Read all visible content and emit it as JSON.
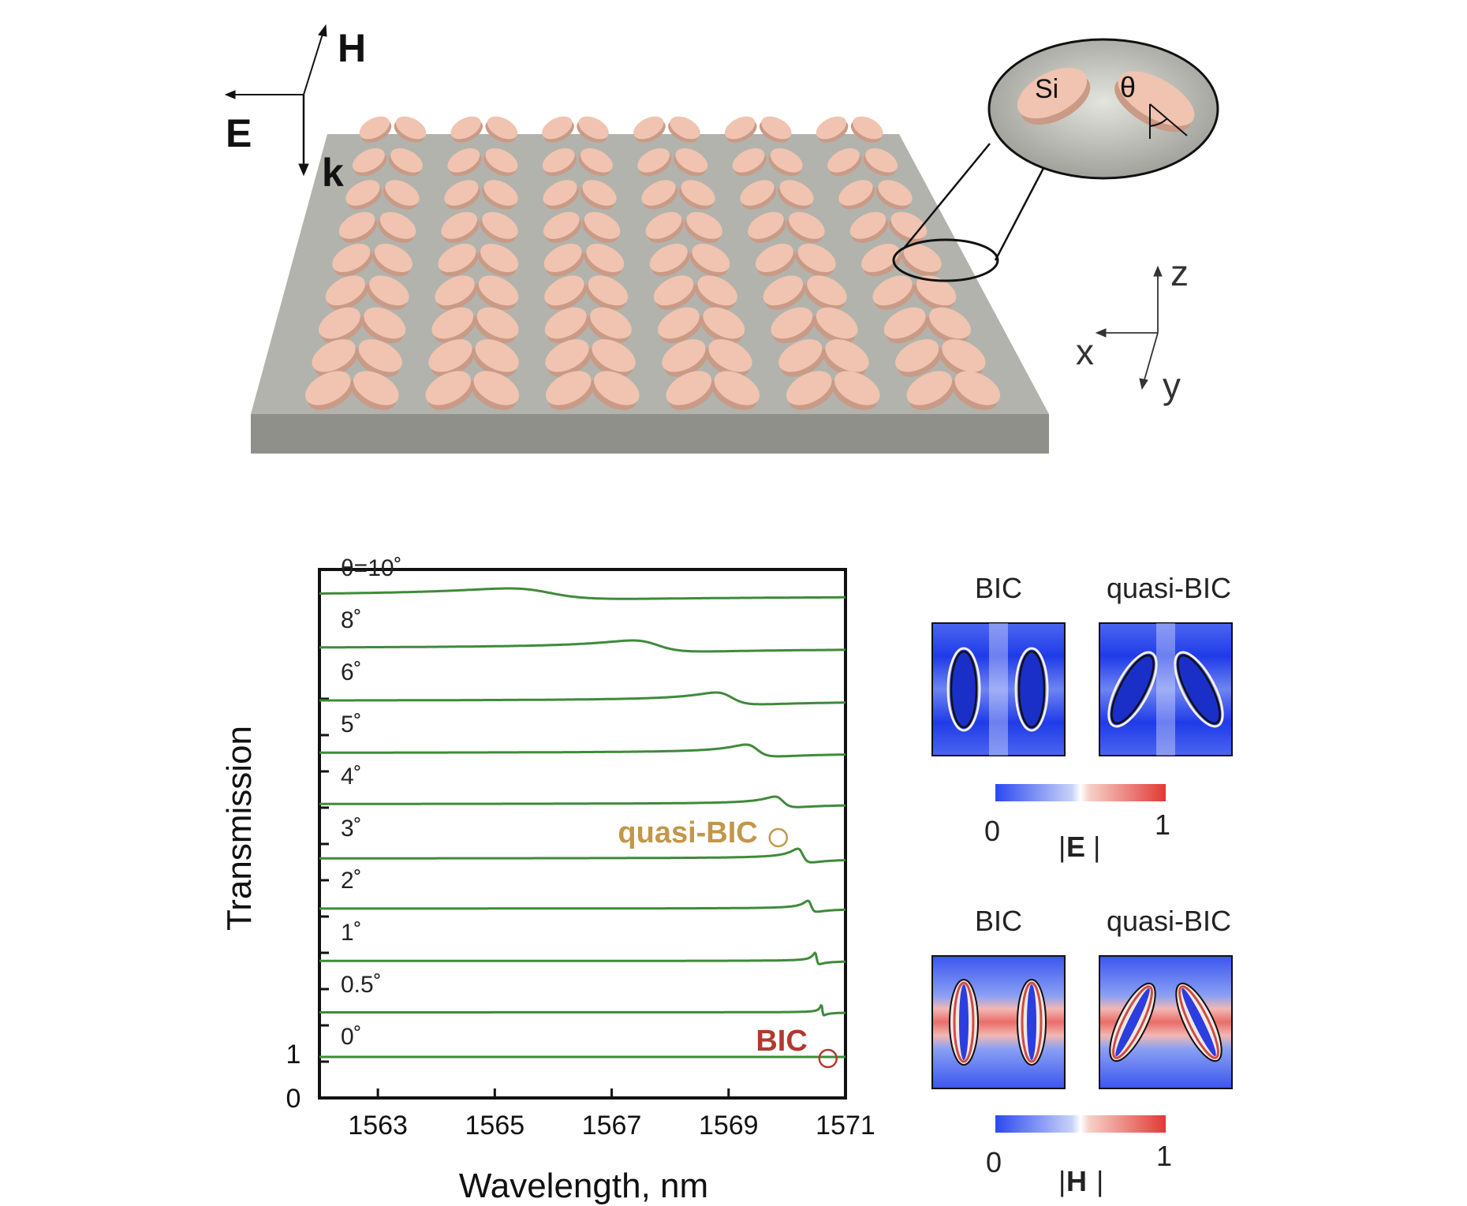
{
  "schematic": {
    "axes_top_left": {
      "h_label": "H",
      "e_label": "E",
      "k_label": "k"
    },
    "axes_right": {
      "z_label": "z",
      "x_label": "x",
      "y_label": "y"
    },
    "inset": {
      "material_label": "Si",
      "angle_label": "θ"
    }
  },
  "chart_data": {
    "type": "line",
    "xlabel": "Wavelength, nm",
    "ylabel": "Transmission",
    "xlim": [
      1562,
      1571
    ],
    "xticks": [
      "1563",
      "1565",
      "1567",
      "1569",
      "1571"
    ],
    "xtick_values": [
      1563,
      1565,
      1567,
      1569,
      1571
    ],
    "yticks": [
      "0",
      "1"
    ],
    "note": "curves vertically offset; each baseline ≈ 1 with a Fano-type dip",
    "series": [
      {
        "name": "0˚",
        "offset": 0,
        "dip_x": null,
        "dip_depth": 0.0,
        "dip_width": 0.0
      },
      {
        "name": "0.5˚",
        "offset": 1,
        "dip_x": 1570.6,
        "dip_depth": 0.55,
        "dip_width": 0.04
      },
      {
        "name": "1˚",
        "offset": 2,
        "dip_x": 1570.5,
        "dip_depth": 0.6,
        "dip_width": 0.07
      },
      {
        "name": "2˚",
        "offset": 3,
        "dip_x": 1570.4,
        "dip_depth": 0.58,
        "dip_width": 0.14
      },
      {
        "name": "3˚",
        "offset": 4,
        "dip_x": 1570.25,
        "dip_depth": 0.72,
        "dip_width": 0.22
      },
      {
        "name": "4˚",
        "offset": 5,
        "dip_x": 1569.9,
        "dip_depth": 0.55,
        "dip_width": 0.35
      },
      {
        "name": "5˚",
        "offset": 6,
        "dip_x": 1569.45,
        "dip_depth": 0.62,
        "dip_width": 0.5
      },
      {
        "name": "6˚",
        "offset": 7,
        "dip_x": 1569.0,
        "dip_depth": 0.62,
        "dip_width": 0.7
      },
      {
        "name": "8˚",
        "offset": 8,
        "dip_x": 1567.7,
        "dip_depth": 0.58,
        "dip_width": 1.1
      },
      {
        "name": "θ=10˚",
        "offset": 9,
        "dip_x": 1565.8,
        "dip_depth": 0.55,
        "dip_width": 1.8
      }
    ],
    "annotations": [
      {
        "text": "quasi-BIC",
        "x": 1569.85,
        "series": "4˚",
        "color": "#c4964a"
      },
      {
        "text": "BIC",
        "x": 1570.7,
        "series": "0˚",
        "color": "#b03a2e"
      }
    ]
  },
  "field_maps": {
    "e_panel": {
      "left_title": "BIC",
      "right_title": "quasi-BIC",
      "cb_min": "0",
      "cb_max": "1",
      "cb_label": "E"
    },
    "h_panel": {
      "left_title": "BIC",
      "right_title": "quasi-BIC",
      "cb_min": "0",
      "cb_max": "1",
      "cb_label": "H"
    }
  },
  "colors": {
    "curve": "#3f8a3a",
    "disk": "#f0c4b0",
    "substrate": "#a9aaa3",
    "map_blue": "#3350ee",
    "map_red": "#e05050"
  }
}
